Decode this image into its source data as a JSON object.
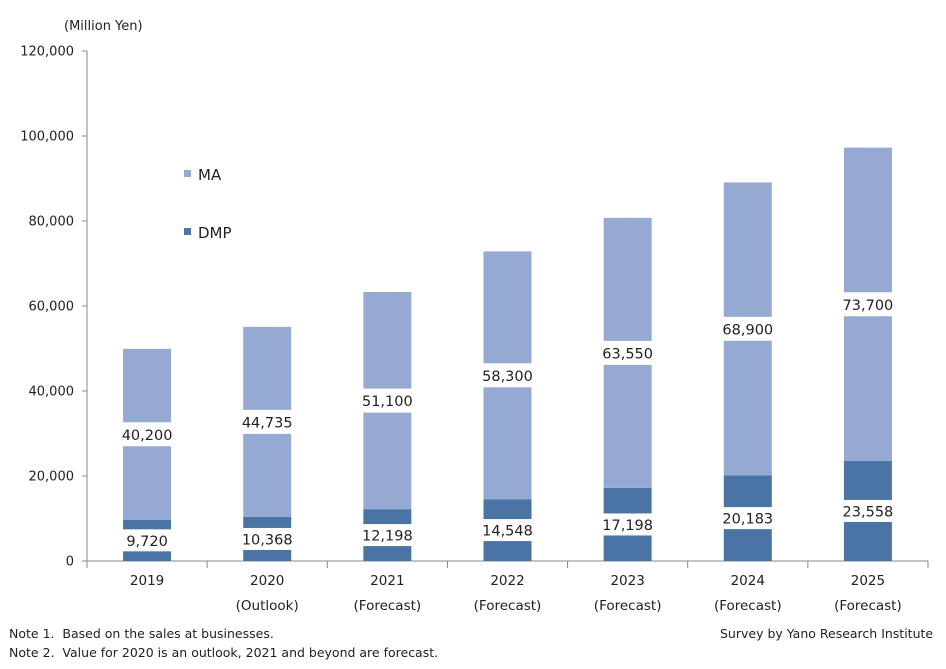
{
  "colors": {
    "ma": "#95aad3",
    "dmp": "#4a74a6",
    "axis": "#888888",
    "grid": "#cccccc",
    "text": "#222222"
  },
  "chart_data": {
    "type": "bar",
    "stacked": true,
    "unit_label": "(Million  Yen)",
    "ylim": [
      0,
      120000
    ],
    "y_ticks": [
      "0",
      "20,000",
      "40,000",
      "60,000",
      "80,000",
      "100,000",
      "120,000"
    ],
    "y_tick_values": [
      0,
      20000,
      40000,
      60000,
      80000,
      100000,
      120000
    ],
    "grid": false,
    "legend_position": "upper-left",
    "categories": [
      [
        "2019",
        ""
      ],
      [
        "2020",
        "(Outlook)"
      ],
      [
        "2021",
        "(Forecast)"
      ],
      [
        "2022",
        "(Forecast)"
      ],
      [
        "2023",
        "(Forecast)"
      ],
      [
        "2024",
        "(Forecast)"
      ],
      [
        "2025",
        "(Forecast)"
      ]
    ],
    "series": [
      {
        "name": "DMP",
        "values": [
          9720,
          10368,
          12198,
          14548,
          17198,
          20183,
          23558
        ],
        "labels": [
          "9,720",
          "10,368",
          "12,198",
          "14,548",
          "17,198",
          "20,183",
          "23,558"
        ]
      },
      {
        "name": "MA",
        "values": [
          40200,
          44735,
          51100,
          58300,
          63550,
          68900,
          73700
        ],
        "labels": [
          "40,200",
          "44,735",
          "51,100",
          "58,300",
          "63,550",
          "68,900",
          "73,700"
        ]
      }
    ]
  },
  "notes": [
    "Note 1.  Based on the sales at businesses.",
    "Note 2.  Value for 2020 is an outlook, 2021 and beyond are forecast."
  ],
  "credit": "Survey by Yano Research Institute"
}
